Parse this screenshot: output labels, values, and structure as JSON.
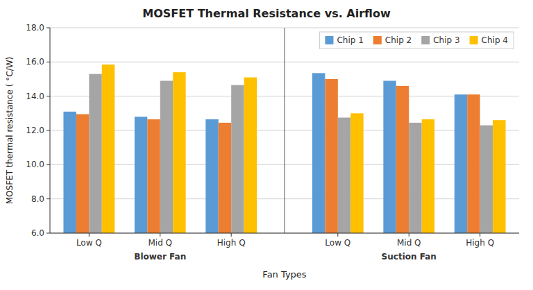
{
  "chart_data": {
    "type": "bar",
    "title": "MOSFET Thermal Resistance vs. Airflow",
    "x_label": "Fan Types",
    "y_label": "MOSFET thermal resistance ( °C/W)",
    "categories": [
      "Low Q",
      "Mid Q",
      "High Q",
      "Low Q",
      "Mid Q",
      "High Q"
    ],
    "annotations": [
      "Blower Fan",
      "Suction Fan"
    ],
    "series": [
      {
        "name": "Chip 1",
        "color": "#5B9BD5",
        "values": [
          13.1,
          12.8,
          12.65,
          15.35,
          14.9,
          14.1
        ]
      },
      {
        "name": "Chip 2",
        "color": "#ED7D31",
        "values": [
          12.95,
          12.65,
          12.45,
          15.0,
          14.6,
          14.1
        ]
      },
      {
        "name": "Chip 3",
        "color": "#A5A5A5",
        "values": [
          15.3,
          14.9,
          14.65,
          12.75,
          12.45,
          12.3
        ]
      },
      {
        "name": "Chip 4",
        "color": "#FFC000",
        "values": [
          15.85,
          15.4,
          15.1,
          13.0,
          12.65,
          12.6
        ]
      }
    ],
    "ylim": [
      6.0,
      18.0
    ],
    "yticks": [
      {
        "value": 6.0,
        "label": "6.0"
      },
      {
        "value": 8.0,
        "label": "8.0"
      },
      {
        "value": 10.0,
        "label": "10.0"
      },
      {
        "value": 12.0,
        "label": "12.0"
      },
      {
        "value": 14.0,
        "label": "14.0"
      },
      {
        "value": 16.0,
        "label": "16.0"
      },
      {
        "value": 18.0,
        "label": "18.0"
      }
    ],
    "grid": true,
    "legend": "upper right"
  }
}
